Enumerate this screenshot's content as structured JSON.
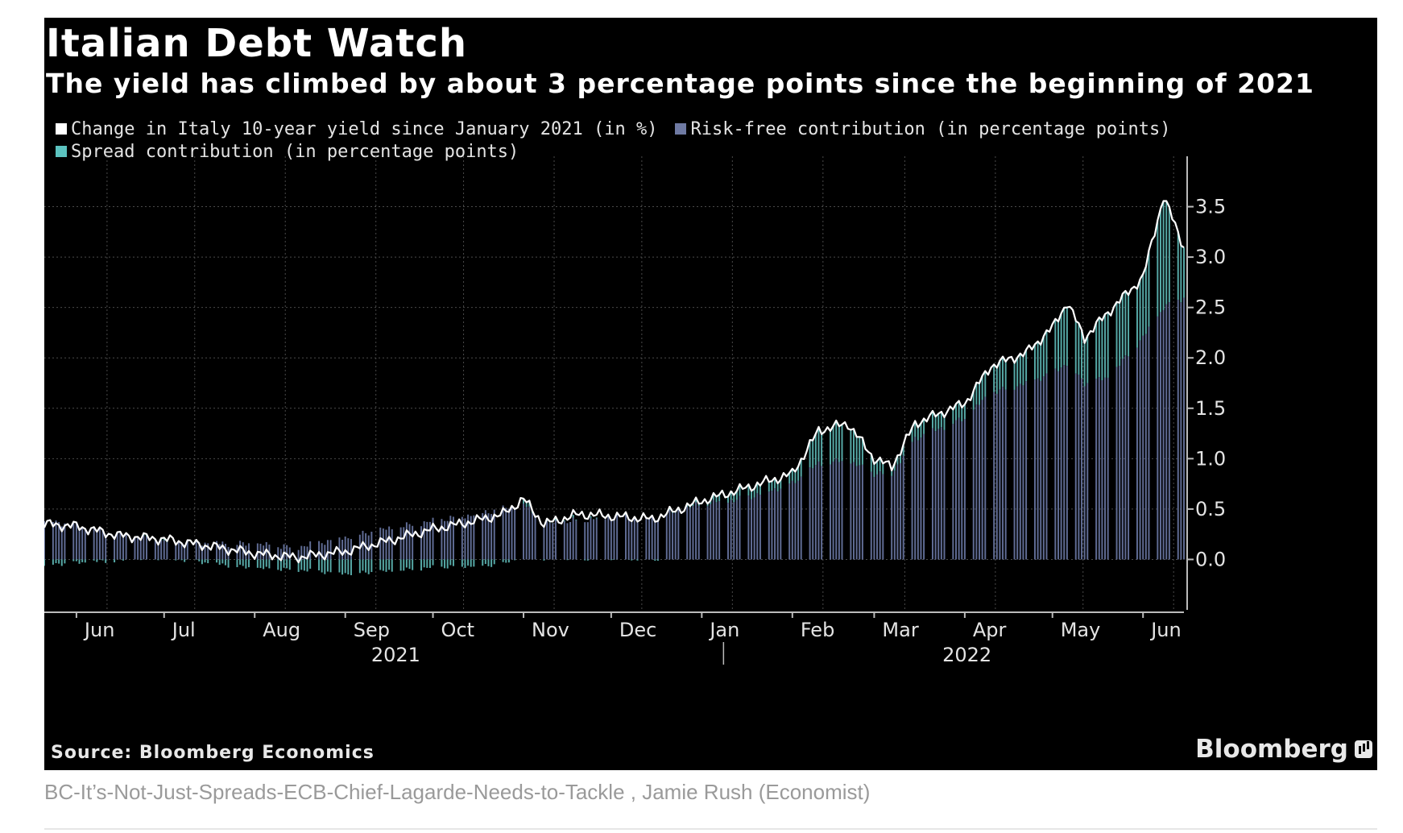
{
  "header": {
    "title": "Italian Debt Watch",
    "subtitle": "The yield has climbed by about 3 percentage points since the beginning of 2021"
  },
  "footer": {
    "source": "Source: Bloomberg Economics",
    "brand": "Bloomberg",
    "caption": "BC-It’s-Not-Just-Spreads-ECB-Chief-Lagarde-Needs-to-Tackle , Jamie Rush (Economist)"
  },
  "colors": {
    "background": "#000000",
    "yield_line": "#ffffff",
    "risk_free": "#5f6b93",
    "spread": "#56a8a6",
    "grid": "#4a4a4a",
    "axis_text": "#e4e4e4"
  },
  "chart_data": {
    "type": "bar",
    "title": "Italian Debt Watch",
    "subtitle": "The yield has climbed by about 3 percentage points since the beginning of 2021",
    "x_range": [
      "2021-05-21",
      "2022-06-15"
    ],
    "y_range": [
      -0.5,
      4.0
    ],
    "y_ticks": [
      0.0,
      0.5,
      1.0,
      1.5,
      2.0,
      2.5,
      3.0,
      3.5
    ],
    "y_tick_labels": [
      "0.0",
      "0.5",
      "1.0",
      "1.5",
      "2.0",
      "2.5",
      "3.0",
      "3.5"
    ],
    "y_axis_side": "right",
    "x_ticks": [
      {
        "label": "Jun",
        "date": "2021-06-01"
      },
      {
        "label": "Jul",
        "date": "2021-07-01"
      },
      {
        "label": "Aug",
        "date": "2021-08-01"
      },
      {
        "label": "Sep",
        "date": "2021-09-01"
      },
      {
        "label": "Oct",
        "date": "2021-10-01"
      },
      {
        "label": "Nov",
        "date": "2021-11-01"
      },
      {
        "label": "Dec",
        "date": "2021-12-01"
      },
      {
        "label": "Jan",
        "date": "2022-01-01"
      },
      {
        "label": "Feb",
        "date": "2022-02-01"
      },
      {
        "label": "Mar",
        "date": "2022-03-01"
      },
      {
        "label": "Apr",
        "date": "2022-04-01"
      },
      {
        "label": "May",
        "date": "2022-05-01"
      },
      {
        "label": "Jun",
        "date": "2022-06-01"
      }
    ],
    "year_labels": [
      {
        "label": "2021",
        "from": "2021-05-21",
        "to": "2021-12-31"
      },
      {
        "label": "2022",
        "from": "2022-01-01",
        "to": "2022-06-15"
      }
    ],
    "grid": true,
    "legend_position": "top-left",
    "series": [
      {
        "name": "Change in Italy 10-year yield since January 2021 (in %)",
        "kind": "line",
        "color": "#ffffff",
        "points": [
          [
            "2021-05-21",
            0.35
          ],
          [
            "2021-06-01",
            0.33
          ],
          [
            "2021-06-15",
            0.24
          ],
          [
            "2021-07-01",
            0.2
          ],
          [
            "2021-07-15",
            0.14
          ],
          [
            "2021-08-01",
            0.06
          ],
          [
            "2021-08-15",
            0.02
          ],
          [
            "2021-09-01",
            0.08
          ],
          [
            "2021-09-15",
            0.18
          ],
          [
            "2021-10-01",
            0.3
          ],
          [
            "2021-10-15",
            0.38
          ],
          [
            "2021-10-25",
            0.45
          ],
          [
            "2021-11-01",
            0.6
          ],
          [
            "2021-11-08",
            0.35
          ],
          [
            "2021-11-20",
            0.45
          ],
          [
            "2021-12-01",
            0.43
          ],
          [
            "2021-12-15",
            0.4
          ],
          [
            "2022-01-01",
            0.58
          ],
          [
            "2022-01-15",
            0.7
          ],
          [
            "2022-02-01",
            0.85
          ],
          [
            "2022-02-10",
            1.28
          ],
          [
            "2022-02-20",
            1.35
          ],
          [
            "2022-03-01",
            1.0
          ],
          [
            "2022-03-07",
            0.92
          ],
          [
            "2022-03-15",
            1.35
          ],
          [
            "2022-04-01",
            1.55
          ],
          [
            "2022-04-10",
            1.92
          ],
          [
            "2022-04-22",
            2.05
          ],
          [
            "2022-05-01",
            2.3
          ],
          [
            "2022-05-06",
            2.55
          ],
          [
            "2022-05-12",
            2.2
          ],
          [
            "2022-05-20",
            2.45
          ],
          [
            "2022-06-01",
            2.8
          ],
          [
            "2022-06-08",
            3.6
          ],
          [
            "2022-06-15",
            3.1
          ]
        ]
      },
      {
        "name": "Risk-free contribution (in percentage points)",
        "kind": "bars",
        "color": "#5f6b93",
        "points": [
          [
            "2021-05-21",
            0.4
          ],
          [
            "2021-06-15",
            0.25
          ],
          [
            "2021-07-01",
            0.18
          ],
          [
            "2021-08-01",
            0.15
          ],
          [
            "2021-08-15",
            0.12
          ],
          [
            "2021-09-01",
            0.22
          ],
          [
            "2021-09-15",
            0.3
          ],
          [
            "2021-10-01",
            0.38
          ],
          [
            "2021-10-25",
            0.5
          ],
          [
            "2021-11-01",
            0.55
          ],
          [
            "2021-11-08",
            0.35
          ],
          [
            "2021-12-01",
            0.42
          ],
          [
            "2021-12-15",
            0.4
          ],
          [
            "2022-01-01",
            0.55
          ],
          [
            "2022-01-15",
            0.6
          ],
          [
            "2022-02-01",
            0.75
          ],
          [
            "2022-02-10",
            0.95
          ],
          [
            "2022-02-20",
            0.98
          ],
          [
            "2022-03-01",
            0.85
          ],
          [
            "2022-03-07",
            0.85
          ],
          [
            "2022-03-15",
            1.2
          ],
          [
            "2022-04-01",
            1.4
          ],
          [
            "2022-04-10",
            1.65
          ],
          [
            "2022-04-22",
            1.75
          ],
          [
            "2022-05-01",
            1.85
          ],
          [
            "2022-05-06",
            1.95
          ],
          [
            "2022-05-12",
            1.75
          ],
          [
            "2022-05-20",
            1.8
          ],
          [
            "2022-06-01",
            2.2
          ],
          [
            "2022-06-08",
            2.5
          ],
          [
            "2022-06-15",
            2.6
          ]
        ]
      },
      {
        "name": "Spread contribution (in percentage points)",
        "kind": "bars",
        "color": "#56a8a6",
        "points": [
          [
            "2021-05-21",
            -0.05
          ],
          [
            "2021-06-15",
            -0.01
          ],
          [
            "2021-07-01",
            0.02
          ],
          [
            "2021-08-01",
            -0.09
          ],
          [
            "2021-08-15",
            -0.1
          ],
          [
            "2021-09-01",
            -0.14
          ],
          [
            "2021-09-15",
            -0.12
          ],
          [
            "2021-10-01",
            -0.08
          ],
          [
            "2021-10-25",
            -0.05
          ],
          [
            "2021-11-01",
            0.05
          ],
          [
            "2021-11-08",
            0.0
          ],
          [
            "2021-12-01",
            0.01
          ],
          [
            "2021-12-15",
            0.0
          ],
          [
            "2022-01-01",
            0.03
          ],
          [
            "2022-01-15",
            0.1
          ],
          [
            "2022-02-01",
            0.1
          ],
          [
            "2022-02-10",
            0.33
          ],
          [
            "2022-02-20",
            0.37
          ],
          [
            "2022-03-01",
            0.15
          ],
          [
            "2022-03-07",
            0.07
          ],
          [
            "2022-03-15",
            0.15
          ],
          [
            "2022-04-01",
            0.15
          ],
          [
            "2022-04-10",
            0.27
          ],
          [
            "2022-04-22",
            0.3
          ],
          [
            "2022-05-01",
            0.45
          ],
          [
            "2022-05-06",
            0.6
          ],
          [
            "2022-05-12",
            0.45
          ],
          [
            "2022-05-20",
            0.65
          ],
          [
            "2022-06-01",
            0.6
          ],
          [
            "2022-06-08",
            1.1
          ],
          [
            "2022-06-15",
            0.5
          ]
        ]
      }
    ]
  }
}
